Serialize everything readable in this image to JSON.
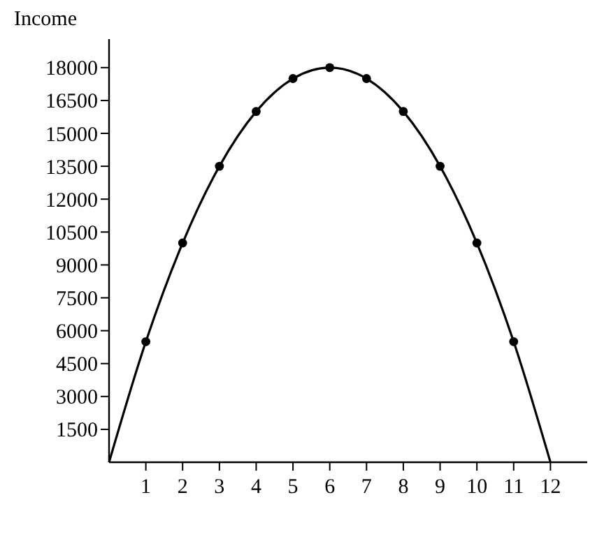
{
  "chart_data": {
    "type": "line",
    "ylabel": "Income",
    "xlim": [
      0,
      13
    ],
    "ylim": [
      0,
      19300
    ],
    "xticks": [
      1,
      2,
      3,
      4,
      5,
      6,
      7,
      8,
      9,
      10,
      11,
      12
    ],
    "yticks": [
      1500,
      3000,
      4500,
      6000,
      7500,
      9000,
      10500,
      12000,
      13500,
      15000,
      16500,
      18000
    ],
    "grid": false,
    "series": [
      {
        "color": "#000000",
        "marker": "none",
        "x": [
          0,
          1,
          2,
          3,
          4,
          5,
          6,
          7,
          8,
          9,
          10,
          11,
          12
        ],
        "values": [
          0,
          5500,
          10000,
          13500,
          16000,
          17500,
          18000,
          17500,
          16000,
          13500,
          10000,
          5500,
          0
        ]
      },
      {
        "type": "scatter",
        "color": "#000000",
        "marker": "circle",
        "x": [
          1,
          2,
          3,
          4,
          5,
          6,
          7,
          8,
          9,
          10,
          11
        ],
        "values": [
          5500,
          10000,
          13500,
          16000,
          17500,
          18000,
          17500,
          16000,
          13500,
          10000,
          5500
        ]
      }
    ]
  }
}
